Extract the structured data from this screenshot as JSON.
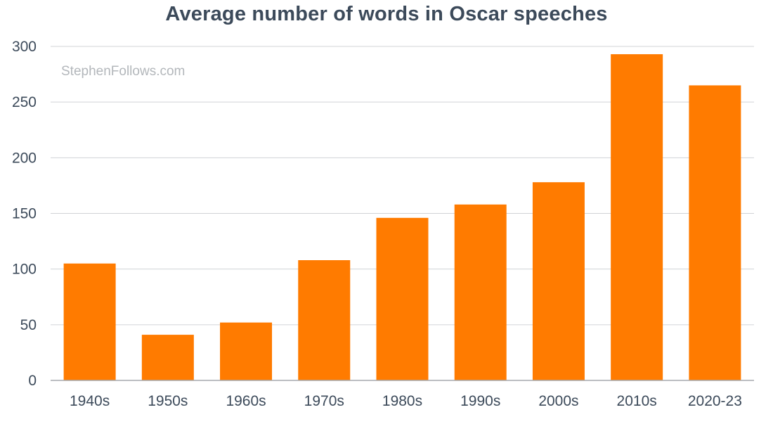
{
  "chart_data": {
    "type": "bar",
    "title": "Average number of words in Oscar speeches",
    "categories": [
      "1940s",
      "1950s",
      "1960s",
      "1970s",
      "1980s",
      "1990s",
      "2000s",
      "2010s",
      "2020-23"
    ],
    "values": [
      105,
      41,
      52,
      108,
      146,
      158,
      178,
      293,
      265
    ],
    "xlabel": "",
    "ylabel": "",
    "ylim": [
      0,
      300
    ],
    "yticks": [
      0,
      50,
      100,
      150,
      200,
      250,
      300
    ],
    "grid": true,
    "bar_color": "#ff7b00",
    "watermark": "StephenFollows.com"
  }
}
